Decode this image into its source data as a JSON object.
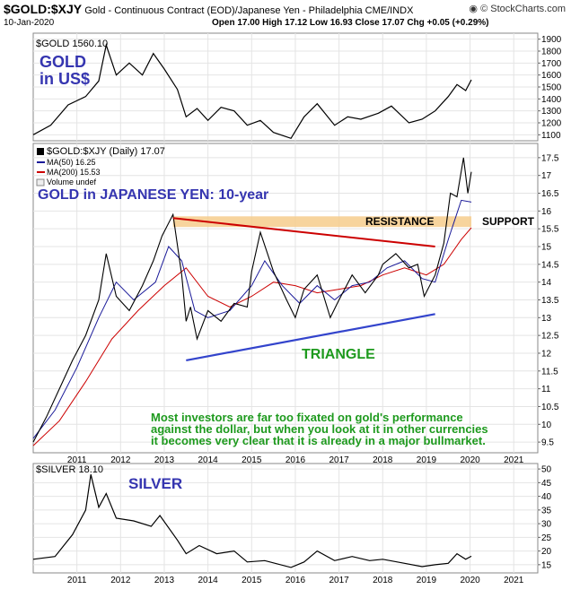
{
  "header": {
    "symbol": "$GOLD:$XJY",
    "description": "Gold - Continuous Contract (EOD)/Japanese Yen - Philadelphia CME/INDX",
    "date": "10-Jan-2020",
    "ohlc": "Open 17.00  High 17.12  Low 16.93  Close 17.07  Chg +0.05 (+0.29%)",
    "logo": "© StockCharts.com",
    "logo_icon": "stockcharts-logo-icon"
  },
  "chart_data": [
    {
      "type": "line",
      "legend": "$GOLD 1560.10",
      "annotation": "GOLD\nin US$",
      "ylim": [
        1050,
        1950
      ],
      "yticks": [
        1100,
        1200,
        1300,
        1400,
        1500,
        1600,
        1700,
        1800,
        1900
      ],
      "x": [
        2010.0,
        2010.4,
        2010.8,
        2011.2,
        2011.5,
        2011.67,
        2011.9,
        2012.2,
        2012.5,
        2012.75,
        2013.0,
        2013.3,
        2013.5,
        2013.75,
        2014.0,
        2014.3,
        2014.6,
        2014.9,
        2015.2,
        2015.5,
        2015.9,
        2016.2,
        2016.5,
        2016.9,
        2017.2,
        2017.5,
        2017.9,
        2018.2,
        2018.6,
        2018.9,
        2019.2,
        2019.5,
        2019.7,
        2019.9,
        2020.03
      ],
      "values": [
        1100,
        1180,
        1350,
        1420,
        1550,
        1850,
        1600,
        1700,
        1600,
        1780,
        1650,
        1480,
        1250,
        1320,
        1220,
        1330,
        1300,
        1180,
        1220,
        1120,
        1070,
        1250,
        1360,
        1180,
        1250,
        1230,
        1280,
        1340,
        1200,
        1230,
        1300,
        1420,
        1520,
        1470,
        1560
      ]
    },
    {
      "type": "line",
      "legend": [
        "$GOLD:$XJY (Daily) 17.07",
        "MA(50) 16.25",
        "MA(200) 15.53",
        "Volume undef"
      ],
      "title": "GOLD in JAPANESE YEN: 10-year",
      "ylim": [
        9.2,
        17.9
      ],
      "yticks": [
        9.5,
        10.0,
        10.5,
        11.0,
        11.5,
        12.0,
        12.5,
        13.0,
        13.5,
        14.0,
        14.5,
        15.0,
        15.5,
        16.0,
        16.5,
        17.0,
        17.5
      ],
      "xticks": [
        "2011",
        "2012",
        "2013",
        "2014",
        "2015",
        "2016",
        "2017",
        "2018",
        "2019",
        "2020",
        "2021"
      ],
      "series": [
        {
          "name": "$GOLD:$XJY",
          "color": "#000000",
          "x": [
            2010.0,
            2010.3,
            2010.6,
            2010.9,
            2011.2,
            2011.5,
            2011.67,
            2011.9,
            2012.2,
            2012.5,
            2012.75,
            2012.95,
            2013.2,
            2013.4,
            2013.5,
            2013.6,
            2013.75,
            2014.0,
            2014.3,
            2014.6,
            2014.9,
            2015.0,
            2015.2,
            2015.5,
            2015.8,
            2016.0,
            2016.2,
            2016.5,
            2016.8,
            2017.0,
            2017.3,
            2017.6,
            2017.9,
            2018.0,
            2018.3,
            2018.6,
            2018.8,
            2018.95,
            2019.2,
            2019.4,
            2019.55,
            2019.7,
            2019.85,
            2019.95,
            2020.03
          ],
          "values": [
            9.5,
            10.2,
            11.0,
            11.8,
            12.5,
            13.5,
            14.8,
            13.6,
            13.2,
            13.9,
            14.6,
            15.3,
            15.9,
            14.2,
            12.9,
            13.3,
            12.4,
            13.2,
            12.9,
            13.4,
            13.3,
            14.3,
            15.4,
            14.3,
            13.5,
            13.0,
            13.8,
            14.2,
            13.0,
            13.5,
            14.2,
            13.7,
            14.2,
            14.5,
            14.8,
            14.4,
            14.5,
            13.6,
            14.2,
            15.1,
            16.5,
            16.4,
            17.5,
            16.5,
            17.1
          ]
        },
        {
          "name": "MA(50)",
          "color": "#1a1a99",
          "x": [
            2010.0,
            2010.5,
            2011.0,
            2011.5,
            2011.9,
            2012.3,
            2012.8,
            2013.1,
            2013.4,
            2013.7,
            2014.0,
            2014.5,
            2015.0,
            2015.3,
            2015.7,
            2016.1,
            2016.5,
            2016.9,
            2017.3,
            2017.7,
            2018.1,
            2018.5,
            2018.9,
            2019.2,
            2019.5,
            2019.8,
            2020.03
          ],
          "values": [
            9.6,
            10.4,
            11.6,
            13.0,
            14.0,
            13.5,
            14.0,
            15.0,
            14.6,
            13.2,
            13.0,
            13.2,
            13.9,
            14.6,
            13.9,
            13.4,
            13.9,
            13.5,
            13.9,
            14.0,
            14.4,
            14.6,
            14.1,
            14.0,
            15.2,
            16.3,
            16.25
          ]
        },
        {
          "name": "MA(200)",
          "color": "#cc0000",
          "x": [
            2010.0,
            2010.6,
            2011.2,
            2011.8,
            2012.4,
            2013.0,
            2013.5,
            2014.0,
            2014.5,
            2015.0,
            2015.5,
            2016.0,
            2016.5,
            2017.0,
            2017.5,
            2018.0,
            2018.5,
            2019.0,
            2019.4,
            2019.8,
            2020.03
          ],
          "values": [
            9.4,
            10.1,
            11.2,
            12.4,
            13.2,
            13.9,
            14.4,
            13.6,
            13.3,
            13.6,
            14.0,
            13.9,
            13.7,
            13.8,
            13.9,
            14.2,
            14.4,
            14.2,
            14.5,
            15.2,
            15.53
          ]
        }
      ],
      "annotations": {
        "resistance": "RESISTANCE",
        "support": "SUPPORT",
        "triangle": "TRIANGLE",
        "comment": "Most investors are far too fixated on gold's performance against the dollar, but when you look at it in other currencies it becomes very clear that it is already in a major bullmarket."
      },
      "band": {
        "from": 15.55,
        "to": 15.85,
        "x_from": 2013.2,
        "x_to": 2020.03,
        "color": "#f6cc8c"
      },
      "resistance_line": {
        "x": [
          2013.2,
          2019.2
        ],
        "values": [
          15.8,
          15.0
        ],
        "color": "#cc0000"
      },
      "triangle_line": {
        "x": [
          2013.5,
          2019.2
        ],
        "values": [
          11.8,
          13.1
        ],
        "color": "#3344cc"
      }
    },
    {
      "type": "line",
      "legend": "$SILVER 18.10",
      "annotation": "SILVER",
      "ylim": [
        12,
        52
      ],
      "yticks": [
        15,
        20,
        25,
        30,
        35,
        40,
        45,
        50
      ],
      "xticks": [
        "2011",
        "2012",
        "2013",
        "2014",
        "2015",
        "2016",
        "2017",
        "2018",
        "2019",
        "2020",
        "2021"
      ],
      "x": [
        2010.0,
        2010.5,
        2010.9,
        2011.2,
        2011.32,
        2011.5,
        2011.67,
        2011.9,
        2012.3,
        2012.7,
        2012.9,
        2013.3,
        2013.5,
        2013.8,
        2014.2,
        2014.6,
        2014.9,
        2015.3,
        2015.9,
        2016.2,
        2016.5,
        2016.9,
        2017.3,
        2017.7,
        2018.0,
        2018.5,
        2018.9,
        2019.2,
        2019.5,
        2019.7,
        2019.9,
        2020.03
      ],
      "values": [
        17,
        18,
        26,
        35,
        48,
        36,
        41,
        32,
        31,
        29,
        33,
        24,
        19,
        22,
        19,
        20,
        16,
        16.5,
        14,
        16,
        20,
        16.5,
        18,
        16.5,
        17,
        15.5,
        14.3,
        15,
        15.5,
        19,
        17,
        18.1
      ]
    }
  ]
}
